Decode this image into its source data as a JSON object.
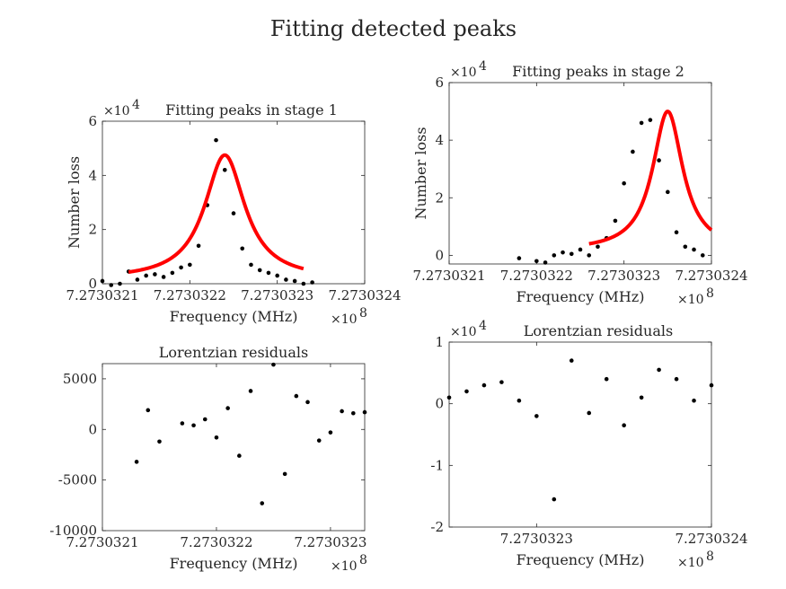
{
  "figure": {
    "title": "Fitting detected peaks"
  },
  "chart_data": [
    {
      "id": "p1",
      "type": "scatter",
      "title": "Fitting peaks in stage 1",
      "xlabel": "Frequency (MHz)",
      "ylabel": "Number loss",
      "x_multiplier": "×10",
      "x_multiplier_exp": "8",
      "y_multiplier": "×10",
      "y_multiplier_exp": "4",
      "xlim": [
        7.2730321,
        7.2730324
      ],
      "ylim": [
        0,
        6
      ],
      "xticks": [
        7.2730321,
        7.2730322,
        7.2730323,
        7.2730324
      ],
      "xtick_labels": [
        "7.2730321",
        "7.2730322",
        "7.2730323",
        "7.2730324"
      ],
      "yticks": [
        0,
        2,
        4,
        6
      ],
      "ytick_labels": [
        "0",
        "2",
        "4",
        "6"
      ],
      "series": [
        {
          "kind": "points",
          "color": "#000000",
          "x": [
            7.2730321,
            7.27303211,
            7.27303212,
            7.27303213,
            7.27303214,
            7.27303215,
            7.27303216,
            7.27303217,
            7.27303218,
            7.27303219,
            7.2730322,
            7.27303221,
            7.27303222,
            7.27303223,
            7.27303224,
            7.27303225,
            7.27303226,
            7.27303227,
            7.27303228,
            7.27303229,
            7.2730323,
            7.27303231,
            7.27303232,
            7.27303233,
            7.27303234
          ],
          "y": [
            0.1,
            -0.05,
            0.0,
            0.45,
            0.15,
            0.3,
            0.35,
            0.25,
            0.4,
            0.6,
            0.7,
            1.4,
            2.9,
            5.3,
            4.2,
            2.6,
            1.3,
            0.7,
            0.5,
            0.4,
            0.3,
            0.15,
            0.1,
            0.0,
            0.05
          ]
        },
        {
          "kind": "lorentz-fit",
          "color": "#ff0000",
          "amplitude": 4.6,
          "center": 7.27303224,
          "gamma": 2.8e-08,
          "offset": 0.15,
          "x_range": [
            7.27303213,
            7.27303233
          ]
        }
      ]
    },
    {
      "id": "p2",
      "type": "scatter",
      "title": "Fitting peaks in stage 2",
      "xlabel": "Frequency (MHz)",
      "ylabel": "Number loss",
      "x_multiplier": "×10",
      "x_multiplier_exp": "8",
      "y_multiplier": "×10",
      "y_multiplier_exp": "4",
      "xlim": [
        7.2730321,
        7.2730324
      ],
      "ylim": [
        -0.3,
        6
      ],
      "xticks": [
        7.2730321,
        7.2730322,
        7.2730323,
        7.2730324
      ],
      "xtick_labels": [
        "7.2730321",
        "7.2730322",
        "7.2730323",
        "7.2730324"
      ],
      "yticks": [
        0,
        2,
        4,
        6
      ],
      "ytick_labels": [
        "0",
        "2",
        "4",
        "6"
      ],
      "series": [
        {
          "kind": "points",
          "color": "#000000",
          "x": [
            7.27303218,
            7.2730322,
            7.27303221,
            7.27303222,
            7.27303223,
            7.27303224,
            7.27303225,
            7.27303226,
            7.27303227,
            7.27303228,
            7.27303229,
            7.2730323,
            7.27303231,
            7.27303232,
            7.27303233,
            7.27303234,
            7.27303235,
            7.27303236,
            7.27303237,
            7.27303238,
            7.27303239
          ],
          "y": [
            -0.1,
            -0.2,
            -0.25,
            0.0,
            0.1,
            0.05,
            0.2,
            0.0,
            0.3,
            0.6,
            1.2,
            2.5,
            3.6,
            4.6,
            4.7,
            3.3,
            2.2,
            0.8,
            0.3,
            0.2,
            0.0
          ]
        },
        {
          "kind": "lorentz-fit",
          "color": "#ff0000",
          "amplitude": 4.85,
          "center": 7.27303235,
          "gamma": 2.1e-08,
          "offset": 0.15,
          "x_range": [
            7.27303226,
            7.2730324
          ]
        }
      ]
    },
    {
      "id": "p3",
      "type": "scatter",
      "title": "Lorentzian residuals",
      "xlabel": "Frequency (MHz)",
      "ylabel": "",
      "x_multiplier": "×10",
      "x_multiplier_exp": "8",
      "xlim": [
        7.2730321,
        7.27303233
      ],
      "ylim": [
        -10000,
        6500
      ],
      "xticks": [
        7.2730321,
        7.2730322,
        7.2730323
      ],
      "xtick_labels": [
        "7.2730321",
        "7.2730322",
        "7.2730323"
      ],
      "yticks": [
        -10000,
        -5000,
        0,
        5000
      ],
      "ytick_labels": [
        "-10000",
        "-5000",
        "0",
        "5000"
      ],
      "series": [
        {
          "kind": "points",
          "color": "#000000",
          "x": [
            7.27303213,
            7.27303214,
            7.27303215,
            7.27303217,
            7.27303218,
            7.27303219,
            7.2730322,
            7.27303221,
            7.27303222,
            7.27303223,
            7.27303224,
            7.27303225,
            7.27303226,
            7.27303227,
            7.27303228,
            7.27303229,
            7.2730323,
            7.27303231,
            7.27303232,
            7.27303233
          ],
          "y": [
            -3200,
            1900,
            -1200,
            600,
            400,
            1000,
            -800,
            2100,
            -2600,
            3800,
            -7300,
            6400,
            -4400,
            3300,
            2700,
            -1100,
            -300,
            1800,
            1600,
            1700
          ]
        }
      ]
    },
    {
      "id": "p4",
      "type": "scatter",
      "title": "Lorentzian residuals",
      "xlabel": "Frequency (MHz)",
      "ylabel": "",
      "x_multiplier": "×10",
      "x_multiplier_exp": "8",
      "y_multiplier": "×10",
      "y_multiplier_exp": "4",
      "xlim": [
        7.27303225,
        7.2730324
      ],
      "ylim": [
        -2,
        1
      ],
      "xticks": [
        7.2730323,
        7.2730324
      ],
      "xtick_labels": [
        "7.2730323",
        "7.2730324"
      ],
      "yticks": [
        -2,
        -1,
        0,
        1
      ],
      "ytick_labels": [
        "-2",
        "-1",
        "0",
        "1"
      ],
      "series": [
        {
          "kind": "points",
          "color": "#000000",
          "x": [
            7.27303225,
            7.27303226,
            7.27303227,
            7.27303228,
            7.27303229,
            7.2730323,
            7.27303231,
            7.27303232,
            7.27303233,
            7.27303234,
            7.27303235,
            7.27303236,
            7.27303237,
            7.27303238,
            7.27303239,
            7.2730324
          ],
          "y": [
            0.1,
            0.2,
            0.3,
            0.35,
            0.05,
            -0.2,
            -1.55,
            0.7,
            -0.15,
            0.4,
            -0.35,
            0.1,
            0.55,
            0.4,
            0.05,
            0.3
          ]
        }
      ]
    }
  ]
}
